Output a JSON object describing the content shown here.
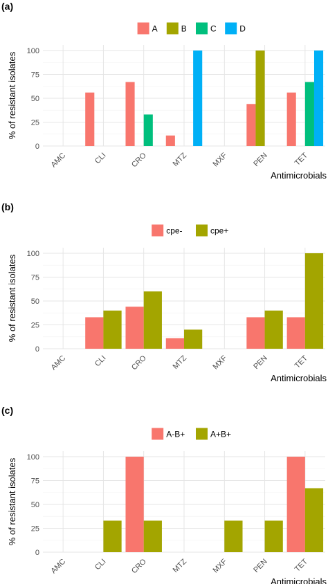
{
  "chart_data": [
    {
      "panel": "(a)",
      "type": "bar",
      "categories": [
        "AMC",
        "CLI",
        "CRO",
        "MTZ",
        "MXF",
        "PEN",
        "TET"
      ],
      "series": [
        {
          "name": "A",
          "color": "#f8766d",
          "values": [
            0,
            56,
            67,
            11,
            0,
            44,
            56
          ]
        },
        {
          "name": "B",
          "color": "#a3a500",
          "values": [
            0,
            0,
            0,
            0,
            0,
            100,
            0
          ]
        },
        {
          "name": "C",
          "color": "#00bf7d",
          "values": [
            0,
            0,
            33,
            0,
            0,
            0,
            67
          ]
        },
        {
          "name": "D",
          "color": "#00b0f6",
          "values": [
            0,
            0,
            0,
            100,
            0,
            0,
            100
          ]
        }
      ],
      "xlabel": "Antimicrobials",
      "ylabel": "% of resistant isolates",
      "ylim": [
        0,
        100
      ],
      "yticks": [
        0,
        25,
        50,
        75,
        100
      ],
      "legend_position": "top",
      "grid": true
    },
    {
      "panel": "(b)",
      "type": "bar",
      "categories": [
        "AMC",
        "CLI",
        "CRO",
        "MTZ",
        "MXF",
        "PEN",
        "TET"
      ],
      "series": [
        {
          "name": "cpe-",
          "color": "#f8766d",
          "values": [
            0,
            33,
            44,
            11,
            0,
            33,
            33
          ]
        },
        {
          "name": "cpe+",
          "color": "#a3a500",
          "values": [
            0,
            40,
            60,
            20,
            0,
            40,
            100
          ]
        }
      ],
      "xlabel": "Antimicrobials",
      "ylabel": "% of resistant isolates",
      "ylim": [
        0,
        100
      ],
      "yticks": [
        0,
        25,
        50,
        75,
        100
      ],
      "legend_position": "top",
      "grid": true
    },
    {
      "panel": "(c)",
      "type": "bar",
      "categories": [
        "AMC",
        "CLI",
        "CRO",
        "MTZ",
        "MXF",
        "PEN",
        "TET"
      ],
      "series": [
        {
          "name": "A-B+",
          "color": "#f8766d",
          "values": [
            0,
            0,
            100,
            0,
            0,
            0,
            100
          ]
        },
        {
          "name": "A+B+",
          "color": "#a3a500",
          "values": [
            0,
            33,
            33,
            0,
            33,
            33,
            67
          ]
        }
      ],
      "xlabel": "Antimicrobials",
      "ylabel": "% of resistant isolates",
      "ylim": [
        0,
        100
      ],
      "yticks": [
        0,
        25,
        50,
        75,
        100
      ],
      "legend_position": "top",
      "grid": true
    }
  ]
}
